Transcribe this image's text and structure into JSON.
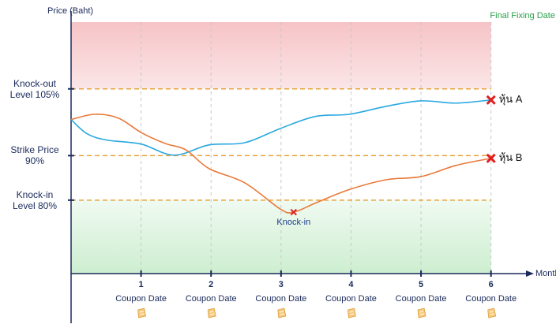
{
  "chart_data": {
    "type": "line",
    "y_label": "Price (Baht)",
    "x_label": "Month",
    "annotation_top": "Final Fixing Date",
    "annotation_knock_in": "Knock-in",
    "xlim": [
      0,
      6.5
    ],
    "xticks": [
      1,
      2,
      3,
      4,
      5,
      6
    ],
    "x_sublabels": [
      "Coupon Date",
      "Coupon Date",
      "Coupon Date",
      "Coupon Date",
      "Coupon Date",
      "Coupon Date"
    ],
    "ylim": [
      63.5,
      120
    ],
    "yticks": [
      {
        "value": 105,
        "label": "Knock-out Level 105%"
      },
      {
        "value": 90,
        "label": "Strike Price 90%"
      },
      {
        "value": 80,
        "label": "Knock-in Level 80%"
      }
    ],
    "series": [
      {
        "name": "หุ้น A",
        "color": "#29a8e0",
        "x": [
          0,
          0.23,
          0.51,
          1,
          1.47,
          1.97,
          2.48,
          2.99,
          3.49,
          3.98,
          4.51,
          5,
          5.5,
          6
        ],
        "values": [
          98.1,
          94.9,
          93.5,
          92.6,
          90.1,
          92.4,
          92.9,
          96.1,
          98.8,
          99.3,
          101.1,
          102.3,
          101.8,
          102.5
        ]
      },
      {
        "name": "หุ้น B",
        "color": "#e8793a",
        "x": [
          0,
          0.34,
          0.68,
          1,
          1.35,
          1.64,
          1.97,
          2.48,
          2.99,
          3.18,
          3.5,
          3.98,
          4.51,
          5,
          5.5,
          6
        ],
        "values": [
          98.1,
          99.3,
          98.4,
          95.2,
          92.7,
          91.3,
          87.1,
          83.9,
          78.0,
          77.3,
          79.4,
          82.4,
          84.6,
          85.3,
          87.8,
          89.4
        ]
      }
    ],
    "knock_in_series": 1,
    "knock_in_index": 9
  }
}
